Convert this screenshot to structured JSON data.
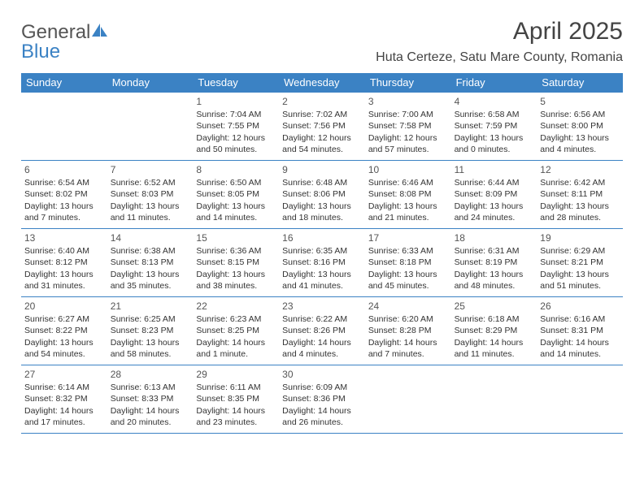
{
  "logo": {
    "text1": "General",
    "text2": "Blue"
  },
  "title": "April 2025",
  "location": "Huta Certeze, Satu Mare County, Romania",
  "colors": {
    "header_bg": "#3b82c4",
    "header_text": "#ffffff",
    "border": "#3b82c4",
    "body_text": "#333333"
  },
  "weekdays": [
    "Sunday",
    "Monday",
    "Tuesday",
    "Wednesday",
    "Thursday",
    "Friday",
    "Saturday"
  ],
  "weeks": [
    [
      null,
      null,
      {
        "n": "1",
        "sr": "Sunrise: 7:04 AM",
        "ss": "Sunset: 7:55 PM",
        "dl": "Daylight: 12 hours and 50 minutes."
      },
      {
        "n": "2",
        "sr": "Sunrise: 7:02 AM",
        "ss": "Sunset: 7:56 PM",
        "dl": "Daylight: 12 hours and 54 minutes."
      },
      {
        "n": "3",
        "sr": "Sunrise: 7:00 AM",
        "ss": "Sunset: 7:58 PM",
        "dl": "Daylight: 12 hours and 57 minutes."
      },
      {
        "n": "4",
        "sr": "Sunrise: 6:58 AM",
        "ss": "Sunset: 7:59 PM",
        "dl": "Daylight: 13 hours and 0 minutes."
      },
      {
        "n": "5",
        "sr": "Sunrise: 6:56 AM",
        "ss": "Sunset: 8:00 PM",
        "dl": "Daylight: 13 hours and 4 minutes."
      }
    ],
    [
      {
        "n": "6",
        "sr": "Sunrise: 6:54 AM",
        "ss": "Sunset: 8:02 PM",
        "dl": "Daylight: 13 hours and 7 minutes."
      },
      {
        "n": "7",
        "sr": "Sunrise: 6:52 AM",
        "ss": "Sunset: 8:03 PM",
        "dl": "Daylight: 13 hours and 11 minutes."
      },
      {
        "n": "8",
        "sr": "Sunrise: 6:50 AM",
        "ss": "Sunset: 8:05 PM",
        "dl": "Daylight: 13 hours and 14 minutes."
      },
      {
        "n": "9",
        "sr": "Sunrise: 6:48 AM",
        "ss": "Sunset: 8:06 PM",
        "dl": "Daylight: 13 hours and 18 minutes."
      },
      {
        "n": "10",
        "sr": "Sunrise: 6:46 AM",
        "ss": "Sunset: 8:08 PM",
        "dl": "Daylight: 13 hours and 21 minutes."
      },
      {
        "n": "11",
        "sr": "Sunrise: 6:44 AM",
        "ss": "Sunset: 8:09 PM",
        "dl": "Daylight: 13 hours and 24 minutes."
      },
      {
        "n": "12",
        "sr": "Sunrise: 6:42 AM",
        "ss": "Sunset: 8:11 PM",
        "dl": "Daylight: 13 hours and 28 minutes."
      }
    ],
    [
      {
        "n": "13",
        "sr": "Sunrise: 6:40 AM",
        "ss": "Sunset: 8:12 PM",
        "dl": "Daylight: 13 hours and 31 minutes."
      },
      {
        "n": "14",
        "sr": "Sunrise: 6:38 AM",
        "ss": "Sunset: 8:13 PM",
        "dl": "Daylight: 13 hours and 35 minutes."
      },
      {
        "n": "15",
        "sr": "Sunrise: 6:36 AM",
        "ss": "Sunset: 8:15 PM",
        "dl": "Daylight: 13 hours and 38 minutes."
      },
      {
        "n": "16",
        "sr": "Sunrise: 6:35 AM",
        "ss": "Sunset: 8:16 PM",
        "dl": "Daylight: 13 hours and 41 minutes."
      },
      {
        "n": "17",
        "sr": "Sunrise: 6:33 AM",
        "ss": "Sunset: 8:18 PM",
        "dl": "Daylight: 13 hours and 45 minutes."
      },
      {
        "n": "18",
        "sr": "Sunrise: 6:31 AM",
        "ss": "Sunset: 8:19 PM",
        "dl": "Daylight: 13 hours and 48 minutes."
      },
      {
        "n": "19",
        "sr": "Sunrise: 6:29 AM",
        "ss": "Sunset: 8:21 PM",
        "dl": "Daylight: 13 hours and 51 minutes."
      }
    ],
    [
      {
        "n": "20",
        "sr": "Sunrise: 6:27 AM",
        "ss": "Sunset: 8:22 PM",
        "dl": "Daylight: 13 hours and 54 minutes."
      },
      {
        "n": "21",
        "sr": "Sunrise: 6:25 AM",
        "ss": "Sunset: 8:23 PM",
        "dl": "Daylight: 13 hours and 58 minutes."
      },
      {
        "n": "22",
        "sr": "Sunrise: 6:23 AM",
        "ss": "Sunset: 8:25 PM",
        "dl": "Daylight: 14 hours and 1 minute."
      },
      {
        "n": "23",
        "sr": "Sunrise: 6:22 AM",
        "ss": "Sunset: 8:26 PM",
        "dl": "Daylight: 14 hours and 4 minutes."
      },
      {
        "n": "24",
        "sr": "Sunrise: 6:20 AM",
        "ss": "Sunset: 8:28 PM",
        "dl": "Daylight: 14 hours and 7 minutes."
      },
      {
        "n": "25",
        "sr": "Sunrise: 6:18 AM",
        "ss": "Sunset: 8:29 PM",
        "dl": "Daylight: 14 hours and 11 minutes."
      },
      {
        "n": "26",
        "sr": "Sunrise: 6:16 AM",
        "ss": "Sunset: 8:31 PM",
        "dl": "Daylight: 14 hours and 14 minutes."
      }
    ],
    [
      {
        "n": "27",
        "sr": "Sunrise: 6:14 AM",
        "ss": "Sunset: 8:32 PM",
        "dl": "Daylight: 14 hours and 17 minutes."
      },
      {
        "n": "28",
        "sr": "Sunrise: 6:13 AM",
        "ss": "Sunset: 8:33 PM",
        "dl": "Daylight: 14 hours and 20 minutes."
      },
      {
        "n": "29",
        "sr": "Sunrise: 6:11 AM",
        "ss": "Sunset: 8:35 PM",
        "dl": "Daylight: 14 hours and 23 minutes."
      },
      {
        "n": "30",
        "sr": "Sunrise: 6:09 AM",
        "ss": "Sunset: 8:36 PM",
        "dl": "Daylight: 14 hours and 26 minutes."
      },
      null,
      null,
      null
    ]
  ]
}
